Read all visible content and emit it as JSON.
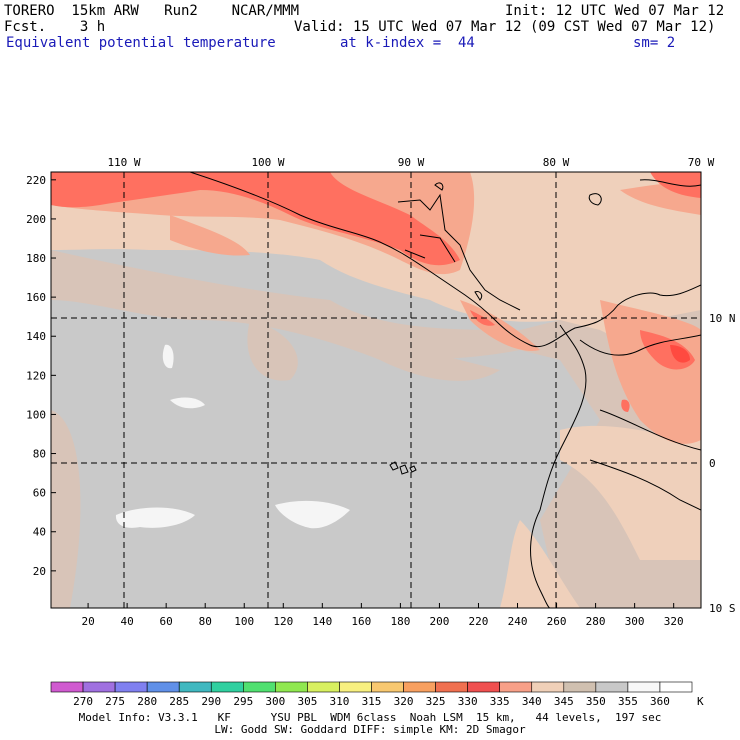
{
  "header": {
    "model": "TORERO  15km ARW   Run2    NCAR/MMM",
    "init": "Init: 12 UTC Wed 07 Mar 12",
    "fcst": "Fcst.    3 h",
    "valid": "Valid: 15 UTC Wed 07 Mar 12 (09 CST Wed 07 Mar 12)",
    "field": "Equivalent potential temperature",
    "level": "at k-index =  44",
    "smoothing": "sm= 2"
  },
  "map": {
    "lon_labels": [
      "110 W",
      "100 W",
      "90 W",
      "80 W",
      "70 W"
    ],
    "lat_labels": [
      "10 N",
      "0",
      "10 S"
    ],
    "y_ticks": [
      "20",
      "40",
      "60",
      "80",
      "100",
      "120",
      "140",
      "160",
      "180",
      "200",
      "220"
    ],
    "x_ticks": [
      "20",
      "40",
      "60",
      "80",
      "100",
      "120",
      "140",
      "160",
      "180",
      "200",
      "220",
      "240",
      "260",
      "280",
      "300",
      "320"
    ],
    "colors": {
      "land_border": "#000000",
      "gridline": "#000000",
      "c345": "#c9c9c9",
      "c350": "#d8c4b8",
      "c340": "#efd0bb",
      "c335": "#f6a88e",
      "c330": "#ff7060",
      "c325": "#ff4a40",
      "c360": "#f5f5f5"
    }
  },
  "colorbar": {
    "labels": [
      "270",
      "275",
      "280",
      "285",
      "290",
      "295",
      "300",
      "305",
      "310",
      "315",
      "320",
      "325",
      "330",
      "335",
      "340",
      "345",
      "350",
      "355",
      "360"
    ],
    "unit": "K",
    "colors": [
      "#d05ad0",
      "#a070e0",
      "#8080f0",
      "#6090e8",
      "#40b8c0",
      "#30d0a0",
      "#50e070",
      "#90e850",
      "#d8f060",
      "#f8f080",
      "#f8c870",
      "#f8a060",
      "#f07050",
      "#f05050",
      "#f8a088",
      "#f0d0b8",
      "#d0c0b0",
      "#c8c8c8",
      "#f8f8f8",
      "#ffffff"
    ]
  },
  "footer": {
    "line1": "Model Info: V3.3.1   KF      YSU PBL  WDM 6class  Noah LSM  15 km,   44 levels,  197 sec",
    "line2": "LW: Godd SW: Goddard DIFF: simple KM: 2D Smagor"
  }
}
